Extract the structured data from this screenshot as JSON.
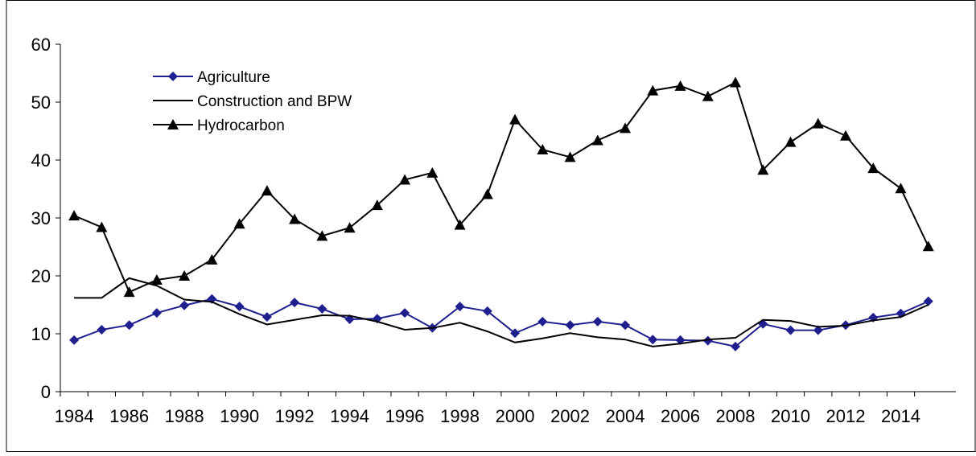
{
  "chart_data": {
    "type": "line",
    "x": [
      1984,
      1985,
      1986,
      1987,
      1988,
      1989,
      1990,
      1991,
      1992,
      1993,
      1994,
      1995,
      1996,
      1997,
      1998,
      1999,
      2000,
      2001,
      2002,
      2003,
      2004,
      2005,
      2006,
      2007,
      2008,
      2009,
      2010,
      2011,
      2012,
      2013,
      2014,
      2015
    ],
    "xlim": [
      1983.5,
      2016
    ],
    "xticks": [
      1984,
      1986,
      1988,
      1990,
      1992,
      1994,
      1996,
      1998,
      2000,
      2002,
      2004,
      2006,
      2008,
      2010,
      2012,
      2014
    ],
    "ylim": [
      0,
      60
    ],
    "yticks": [
      0,
      10,
      20,
      30,
      40,
      50,
      60
    ],
    "legend": "top-left",
    "series": [
      {
        "name": "Agriculture",
        "color": "#1f1f8f",
        "marker": "diamond",
        "values": [
          8.9,
          10.7,
          11.5,
          13.6,
          14.9,
          16.0,
          14.7,
          12.9,
          15.4,
          14.3,
          12.5,
          12.6,
          13.6,
          11.0,
          14.7,
          13.9,
          10.1,
          12.1,
          11.5,
          12.1,
          11.5,
          9.0,
          8.9,
          8.8,
          7.8,
          11.7,
          10.6,
          10.6,
          11.5,
          12.8,
          13.5,
          15.6
        ]
      },
      {
        "name": "Construction and BPW",
        "color": "#000000",
        "marker": "none",
        "values": [
          16.2,
          16.2,
          19.6,
          18.3,
          15.9,
          15.5,
          13.4,
          11.6,
          12.4,
          13.2,
          13.1,
          12.1,
          10.7,
          11.0,
          11.9,
          10.4,
          8.5,
          9.2,
          10.1,
          9.4,
          9.0,
          7.8,
          8.3,
          9.0,
          9.3,
          12.4,
          12.2,
          11.2,
          11.4,
          12.3,
          12.9,
          15.0
        ]
      },
      {
        "name": "Hydrocarbon",
        "color": "#000000",
        "marker": "triangle",
        "values": [
          30.4,
          28.4,
          17.2,
          19.3,
          20.0,
          22.8,
          29.0,
          34.7,
          29.8,
          26.9,
          28.3,
          32.2,
          36.6,
          37.8,
          28.8,
          34.1,
          47.0,
          41.8,
          40.5,
          43.4,
          45.5,
          52.0,
          52.8,
          51.0,
          53.4,
          38.3,
          43.1,
          46.3,
          44.2,
          38.6,
          35.1,
          25.1
        ]
      }
    ]
  }
}
